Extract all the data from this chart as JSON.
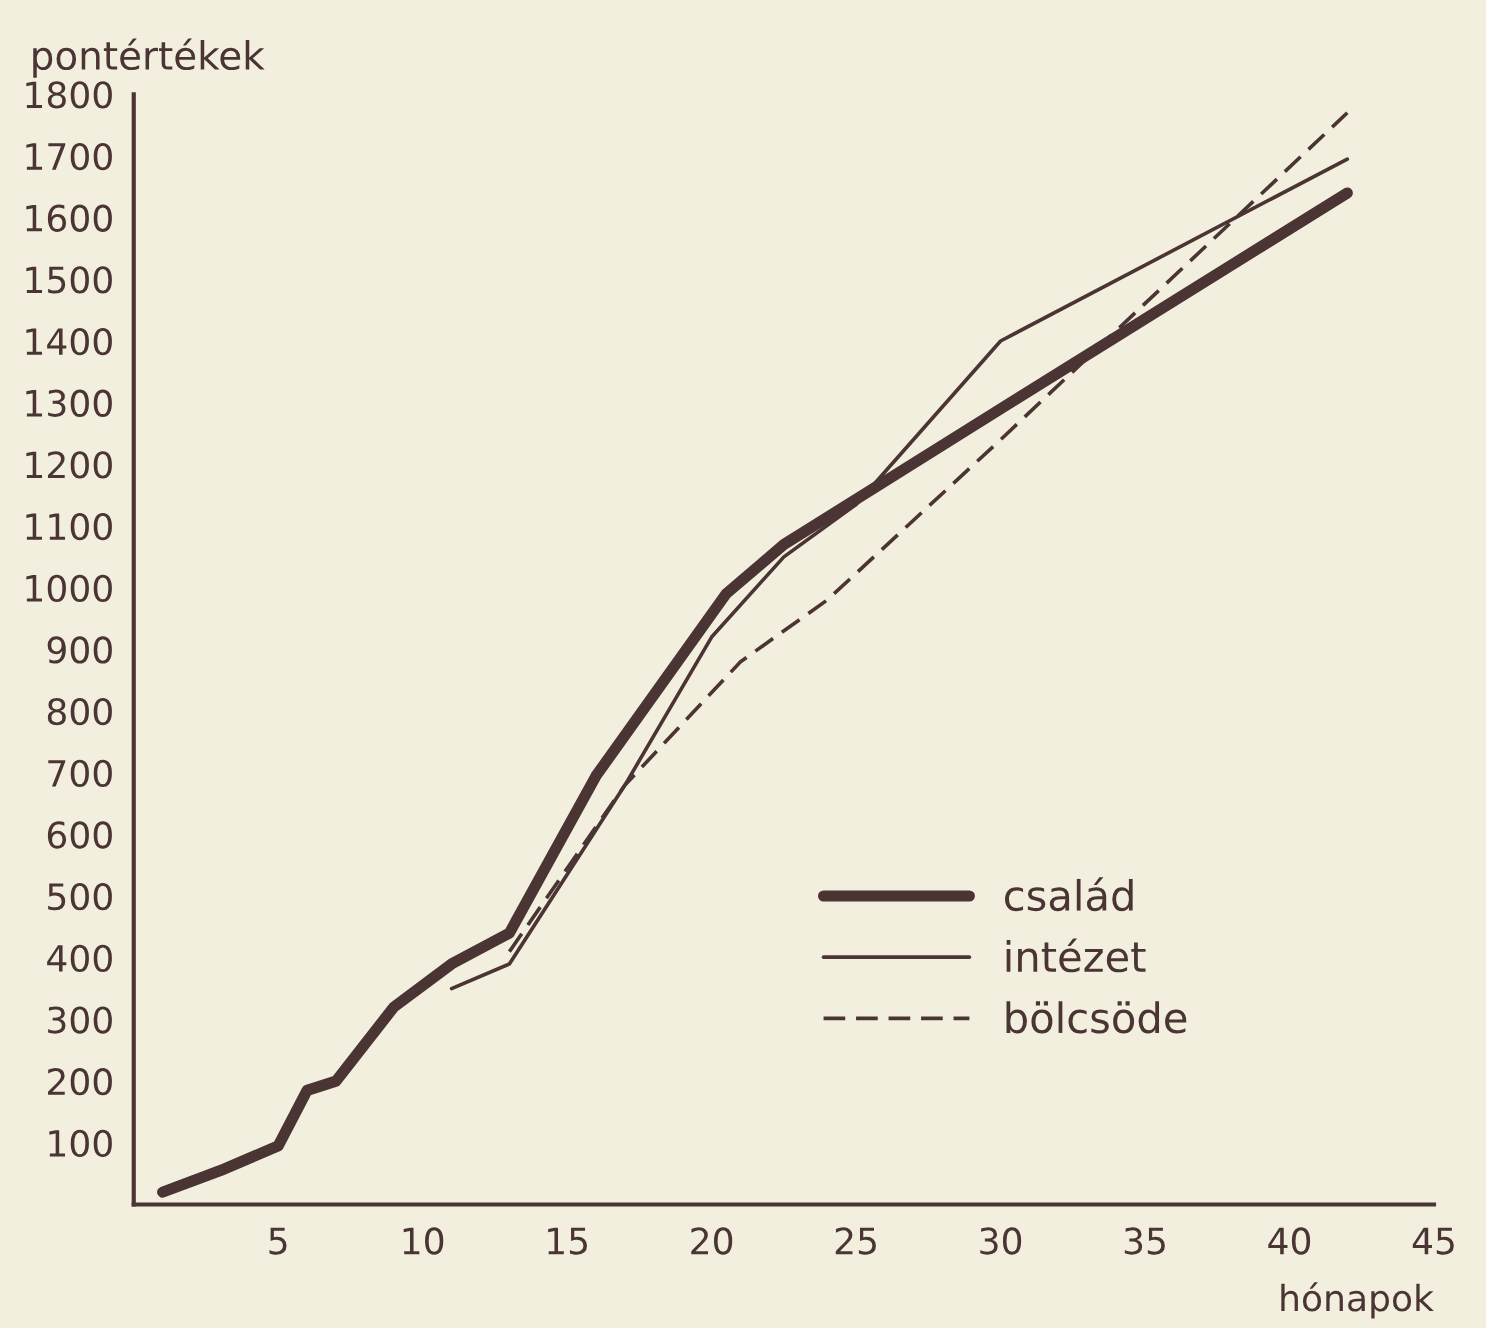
{
  "chart_data": {
    "type": "line",
    "xlabel": "hónapok",
    "ylabel": "pontértékek",
    "xlim": [
      0,
      45
    ],
    "xticks": [
      5,
      10,
      15,
      20,
      25,
      30,
      35,
      40,
      45
    ],
    "ylim": [
      0,
      1800
    ],
    "yticks": [
      100,
      200,
      300,
      400,
      500,
      600,
      700,
      800,
      900,
      1000,
      1100,
      1200,
      1300,
      1400,
      1500,
      1600,
      1700,
      1800
    ],
    "grid": false,
    "legend": "right",
    "marker": "none",
    "series": [
      {
        "name": "család",
        "color": "#4a3434",
        "line_style": "solid",
        "x": [
          1,
          3,
          5,
          6,
          7,
          9,
          11,
          13,
          16,
          20.5,
          22.5,
          30,
          42
        ],
        "values": [
          20,
          55,
          95,
          185,
          200,
          320,
          390,
          440,
          695,
          990,
          1070,
          1290,
          1640
        ]
      },
      {
        "name": "intézet",
        "color": "#4a3434",
        "line_style": "solid",
        "x": [
          11,
          13,
          17,
          20,
          22.5,
          25,
          30,
          42
        ],
        "values": [
          350,
          390,
          680,
          920,
          1050,
          1135,
          1400,
          1695
        ]
      },
      {
        "name": "bölcsöde",
        "color": "#4a3434",
        "line_style": "dashed",
        "x": [
          13,
          17,
          21,
          24,
          30,
          42
        ],
        "values": [
          410,
          680,
          880,
          980,
          1240,
          1770
        ]
      }
    ]
  }
}
